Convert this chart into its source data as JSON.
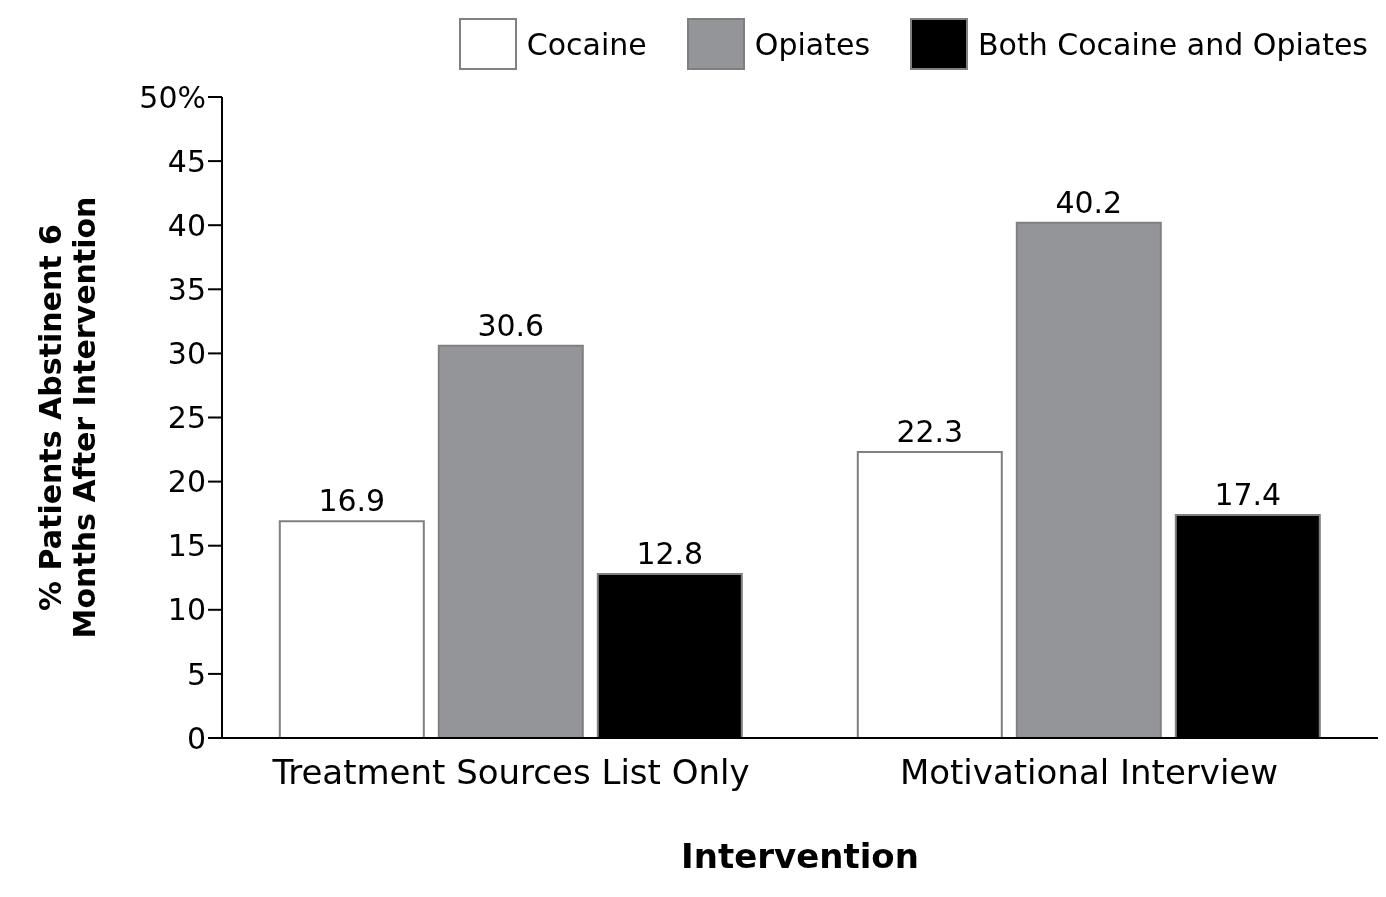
{
  "chart_data": {
    "type": "bar",
    "categories": [
      "Treatment Sources List Only",
      "Motivational Interview"
    ],
    "series": [
      {
        "name": "Cocaine",
        "color": "#ffffff",
        "values": [
          16.9,
          22.3
        ]
      },
      {
        "name": "Opiates",
        "color": "#939598",
        "values": [
          30.6,
          40.2
        ]
      },
      {
        "name": "Both Cocaine and Opiates",
        "color": "#000000",
        "values": [
          12.8,
          17.4
        ]
      }
    ],
    "xlabel": "Intervention",
    "ylabel": "% Patients Abstinent 6 Months After Intervention",
    "ylim": [
      0,
      50
    ],
    "yticks": [
      0,
      5,
      10,
      15,
      20,
      25,
      30,
      35,
      40,
      45,
      {
        "value": 50,
        "label": "50%"
      }
    ],
    "data_labels": true,
    "legend": "top",
    "grid": false
  }
}
